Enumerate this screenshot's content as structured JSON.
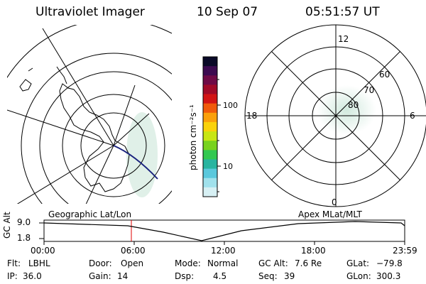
{
  "header": {
    "instrument": "Ultraviolet Imager",
    "date": "10 Sep 07",
    "time": "05:51:57 UT"
  },
  "colorbar": {
    "label": "photon cm⁻²s⁻¹",
    "ticks": [
      "100",
      "10"
    ],
    "colors": [
      "#0a0a28",
      "#3c0a50",
      "#6e0a46",
      "#a00a28",
      "#d21414",
      "#f05a0a",
      "#faa00a",
      "#fad20a",
      "#c8e614",
      "#78d21e",
      "#32c850",
      "#28b4a0",
      "#5ac8dc",
      "#a0e1ec",
      "#d7f0f4"
    ]
  },
  "polar_plot": {
    "mlt_labels": {
      "top": "12",
      "left": "18",
      "right": "6",
      "bottom": "0"
    },
    "lat_labels": [
      "60",
      "70",
      "80"
    ]
  },
  "timeline": {
    "left_label": "Geographic Lat/Lon",
    "right_label": "Apex MLat/MLT",
    "axis_title": "GC Alt",
    "y_ticks": [
      "9.0",
      "1.8"
    ],
    "x_ticks": [
      "00:00",
      "06:00",
      "12:00",
      "18:00",
      "23:59"
    ]
  },
  "info_row1": [
    {
      "key": "Flt:",
      "value": "LBHL"
    },
    {
      "key": "Door:",
      "value": "Open"
    },
    {
      "key": "Mode:",
      "value": "Normal"
    },
    {
      "key": "GC Alt:",
      "value": "7.6 Re"
    },
    {
      "key": "GLat:",
      "value": "−79.8"
    }
  ],
  "info_row2": [
    {
      "key": "IP:",
      "value": "36.0"
    },
    {
      "key": "Gain:",
      "value": "14"
    },
    {
      "key": "Dsp:",
      "value": "4.5"
    },
    {
      "key": "Seq:",
      "value": "39"
    },
    {
      "key": "GLon:",
      "value": "300.3"
    }
  ]
}
